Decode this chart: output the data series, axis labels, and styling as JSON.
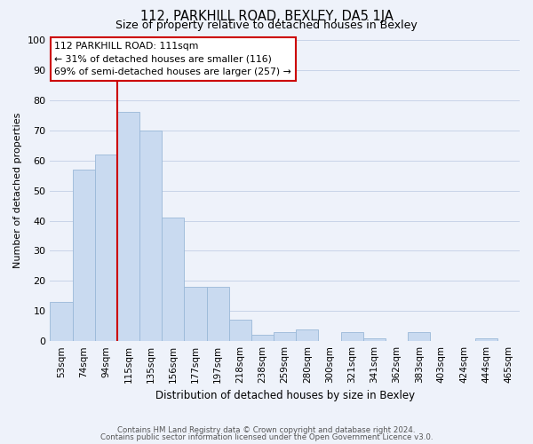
{
  "title": "112, PARKHILL ROAD, BEXLEY, DA5 1JA",
  "subtitle": "Size of property relative to detached houses in Bexley",
  "xlabel": "Distribution of detached houses by size in Bexley",
  "ylabel": "Number of detached properties",
  "bar_labels": [
    "53sqm",
    "74sqm",
    "94sqm",
    "115sqm",
    "135sqm",
    "156sqm",
    "177sqm",
    "197sqm",
    "218sqm",
    "238sqm",
    "259sqm",
    "280sqm",
    "300sqm",
    "321sqm",
    "341sqm",
    "362sqm",
    "383sqm",
    "403sqm",
    "424sqm",
    "444sqm",
    "465sqm"
  ],
  "bar_values": [
    13,
    57,
    62,
    76,
    70,
    41,
    18,
    18,
    7,
    2,
    3,
    4,
    0,
    3,
    1,
    0,
    3,
    0,
    0,
    1,
    0
  ],
  "bar_color": "#c9daf0",
  "bar_edge_color": "#9ab8d8",
  "grid_color": "#c8d4e8",
  "background_color": "#eef2fa",
  "vline_color": "#cc0000",
  "vline_index": 3,
  "annotation_text_line1": "112 PARKHILL ROAD: 111sqm",
  "annotation_text_line2": "← 31% of detached houses are smaller (116)",
  "annotation_text_line3": "69% of semi-detached houses are larger (257) →",
  "annotation_box_color": "#ffffff",
  "annotation_box_edge": "#cc0000",
  "ylim": [
    0,
    100
  ],
  "yticks": [
    0,
    10,
    20,
    30,
    40,
    50,
    60,
    70,
    80,
    90,
    100
  ],
  "footer_line1": "Contains HM Land Registry data © Crown copyright and database right 2024.",
  "footer_line2": "Contains public sector information licensed under the Open Government Licence v3.0."
}
